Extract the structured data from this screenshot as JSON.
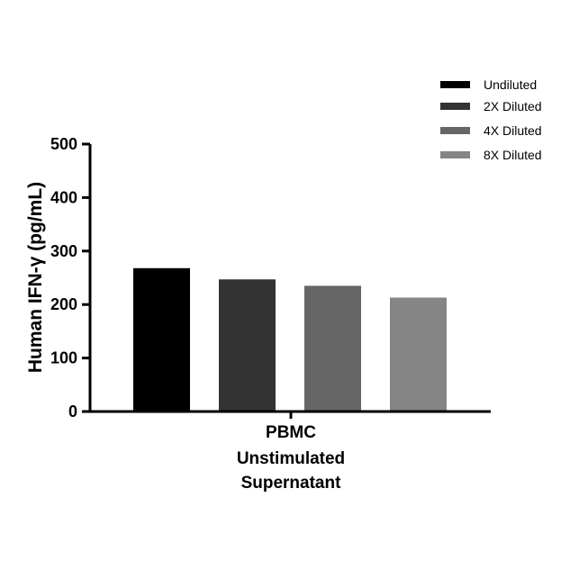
{
  "chart_data": {
    "type": "bar",
    "ylabel": "Human IFN-γ (pg/mL)",
    "ylim": [
      0,
      500
    ],
    "yticks": [
      0,
      100,
      200,
      300,
      400,
      500
    ],
    "category_lines": [
      "PBMC",
      "Unstimulated",
      "Supernatant"
    ],
    "legend_position": "top-right",
    "series": [
      {
        "name": "Undiluted",
        "value": 268,
        "color": "#000000"
      },
      {
        "name": "2X Diluted",
        "value": 247,
        "color": "#333333"
      },
      {
        "name": "4X Diluted",
        "value": 235,
        "color": "#666666"
      },
      {
        "name": "8X Diluted",
        "value": 213,
        "color": "#858585"
      }
    ]
  }
}
